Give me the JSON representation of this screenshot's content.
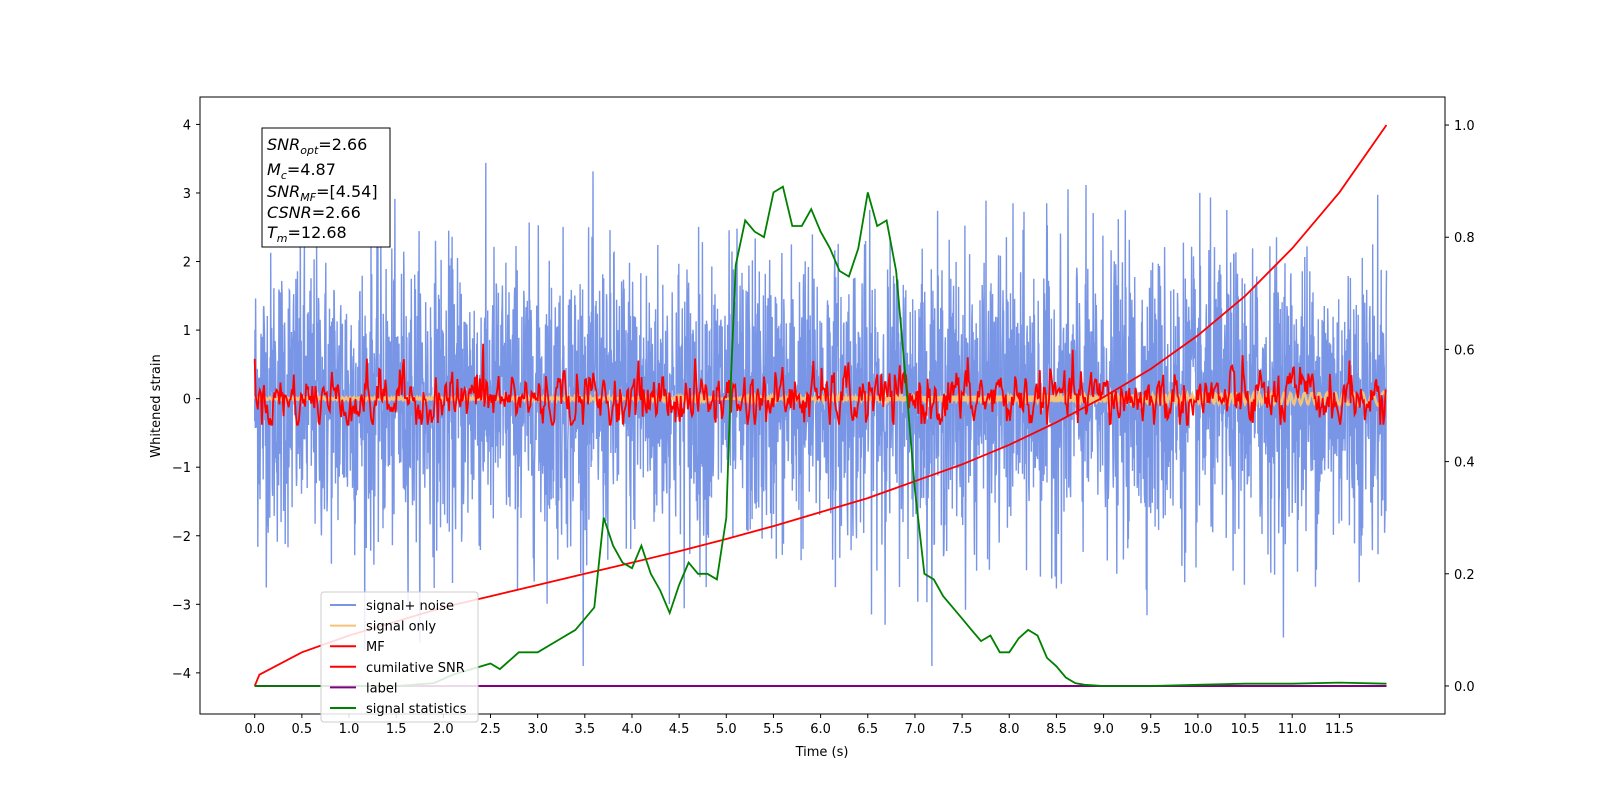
{
  "chart_data": {
    "type": "line",
    "xlabel": "Time (s)",
    "ylabel": "Whitened strain",
    "x_ticks": [
      "0.0",
      "0.5",
      "1.0",
      "1.5",
      "2.0",
      "2.5",
      "3.0",
      "3.5",
      "4.0",
      "4.5",
      "5.0",
      "5.5",
      "6.0",
      "6.5",
      "7.0",
      "7.5",
      "8.0",
      "8.5",
      "9.0",
      "9.5",
      "10.0",
      "10.5",
      "11.0",
      "11.5"
    ],
    "y_ticks": [
      "4",
      "3",
      "2",
      "1",
      "0",
      "−1",
      "−2",
      "−3",
      "−4"
    ],
    "y2_ticks": [
      "1.0",
      "0.8",
      "0.6",
      "0.4",
      "0.2",
      "0.0"
    ],
    "xlim": [
      -0.58,
      12.62
    ],
    "ylim": [
      -4.6,
      4.4
    ],
    "y2lim": [
      -0.05,
      1.05
    ],
    "grid": false,
    "legend_position": "lower-left",
    "info_box": {
      "snr_opt": {
        "main": "SNR",
        "sub": "opt",
        "value": "=2.66"
      },
      "mc": {
        "main": "M",
        "sub": "c",
        "value": "=4.87"
      },
      "snr_mf": {
        "main": "SNR",
        "sub": "MF",
        "value": "=[4.54]"
      },
      "csnr": {
        "main": "CSNR",
        "sub": "",
        "value": "=2.66"
      },
      "tm": {
        "main": "T",
        "sub": "m",
        "value": "=12.68"
      }
    },
    "series": [
      {
        "name": "signal+ noise",
        "color": "#7895e6",
        "axis": "left",
        "description_values": "whitened strain noise, roughly within [-3.9, 4.0], 0 to 12 s"
      },
      {
        "name": "signal only",
        "color": "#f5c27a",
        "axis": "left",
        "values": {
          "x": [
            0,
            12
          ],
          "y": [
            0,
            0
          ]
        }
      },
      {
        "name": "MF",
        "color": "#ff0000",
        "axis": "left",
        "values": {
          "x": [
            0,
            12
          ],
          "y": [
            0,
            0
          ]
        }
      },
      {
        "name": "cumilative SNR",
        "color": "#ff0000",
        "axis": "right",
        "x": [
          0.0,
          0.05,
          0.5,
          1.0,
          1.5,
          2.0,
          2.5,
          3.0,
          3.5,
          4.0,
          4.5,
          5.0,
          5.5,
          6.0,
          6.5,
          7.0,
          7.5,
          8.0,
          8.5,
          9.0,
          9.5,
          10.0,
          10.5,
          11.0,
          11.5,
          12.0
        ],
        "y": [
          0.0,
          0.02,
          0.06,
          0.09,
          0.115,
          0.14,
          0.16,
          0.18,
          0.2,
          0.22,
          0.24,
          0.262,
          0.285,
          0.31,
          0.335,
          0.365,
          0.395,
          0.43,
          0.47,
          0.515,
          0.565,
          0.625,
          0.695,
          0.78,
          0.88,
          1.0
        ]
      },
      {
        "name": "label",
        "color": "#800080",
        "axis": "right",
        "x": [
          0,
          12
        ],
        "y": [
          0.0,
          0.0
        ]
      },
      {
        "name": "signal statistics",
        "color": "#008000",
        "axis": "right",
        "x": [
          0.0,
          0.5,
          1.0,
          1.5,
          1.9,
          2.1,
          2.3,
          2.5,
          2.6,
          2.8,
          3.0,
          3.2,
          3.4,
          3.6,
          3.7,
          3.8,
          3.9,
          4.0,
          4.1,
          4.2,
          4.3,
          4.4,
          4.5,
          4.6,
          4.7,
          4.8,
          4.9,
          5.0,
          5.05,
          5.1,
          5.2,
          5.3,
          5.4,
          5.5,
          5.6,
          5.7,
          5.8,
          5.9,
          6.0,
          6.1,
          6.2,
          6.3,
          6.4,
          6.5,
          6.6,
          6.7,
          6.8,
          6.9,
          7.0,
          7.1,
          7.2,
          7.3,
          7.4,
          7.5,
          7.6,
          7.7,
          7.8,
          7.9,
          8.0,
          8.1,
          8.2,
          8.3,
          8.4,
          8.5,
          8.6,
          8.7,
          8.8,
          9.0,
          9.5,
          10.0,
          10.5,
          11.0,
          11.5,
          12.0
        ],
        "y": [
          0.0,
          0.0,
          0.0,
          0.0,
          0.005,
          0.02,
          0.03,
          0.04,
          0.03,
          0.06,
          0.06,
          0.08,
          0.1,
          0.14,
          0.3,
          0.25,
          0.22,
          0.21,
          0.25,
          0.2,
          0.17,
          0.13,
          0.18,
          0.22,
          0.2,
          0.2,
          0.19,
          0.3,
          0.55,
          0.75,
          0.83,
          0.81,
          0.8,
          0.88,
          0.89,
          0.82,
          0.82,
          0.85,
          0.81,
          0.78,
          0.74,
          0.73,
          0.78,
          0.88,
          0.82,
          0.83,
          0.74,
          0.55,
          0.35,
          0.2,
          0.19,
          0.16,
          0.14,
          0.12,
          0.1,
          0.08,
          0.09,
          0.06,
          0.06,
          0.085,
          0.1,
          0.09,
          0.05,
          0.035,
          0.015,
          0.005,
          0.002,
          0.0,
          0.0,
          0.002,
          0.004,
          0.004,
          0.006,
          0.004
        ]
      }
    ]
  }
}
